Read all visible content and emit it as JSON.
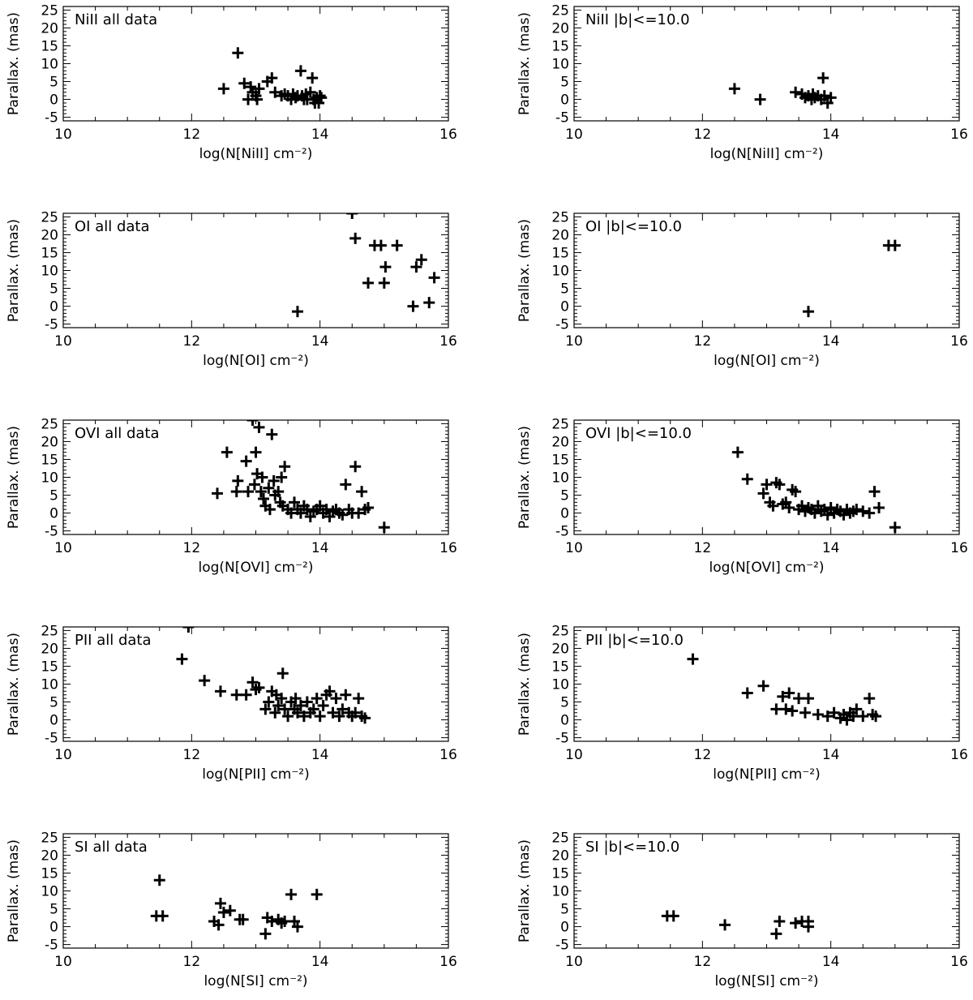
{
  "figure": {
    "background": "#ffffff",
    "foreground": "#000000"
  },
  "chart_data": [
    {
      "type": "scatter",
      "marker": "plus",
      "label": "NiII all data",
      "xlabel": "log(N[NiII] cm⁻²)",
      "ylabel": "Parallax. (mas)",
      "xlim": [
        10,
        16
      ],
      "ylim": [
        -6,
        26
      ],
      "xticks": [
        "10",
        "12",
        "14",
        "16"
      ],
      "yticks": [
        "-5",
        "0",
        "5",
        "10",
        "15",
        "20",
        "25"
      ],
      "x": [
        12.5,
        12.72,
        12.82,
        12.88,
        12.92,
        12.95,
        13.0,
        13.02,
        13.05,
        13.18,
        13.25,
        13.3,
        13.4,
        13.45,
        13.5,
        13.55,
        13.58,
        13.62,
        13.65,
        13.7,
        13.72,
        13.75,
        13.78,
        13.8,
        13.85,
        13.88,
        13.9,
        13.92,
        13.95,
        13.98,
        14.0,
        14.02
      ],
      "y": [
        3,
        13,
        4.5,
        0,
        3.5,
        2,
        1,
        0,
        3,
        5,
        6,
        2,
        1,
        1.5,
        1,
        0,
        1.5,
        0.5,
        1,
        8,
        1,
        0,
        1.5,
        0,
        2,
        6,
        0,
        -1,
        0.5,
        -1,
        1,
        0.5
      ]
    },
    {
      "type": "scatter",
      "marker": "plus",
      "label": "NiII |b|<=10.0",
      "xlabel": "log(N[NiII] cm⁻²)",
      "ylabel": "Parallax. (mas)",
      "xlim": [
        10,
        16
      ],
      "ylim": [
        -6,
        26
      ],
      "xticks": [
        "10",
        "12",
        "14",
        "16"
      ],
      "yticks": [
        "-5",
        "0",
        "5",
        "10",
        "15",
        "20",
        "25"
      ],
      "x": [
        12.5,
        12.9,
        13.45,
        13.55,
        13.6,
        13.65,
        13.7,
        13.72,
        13.75,
        13.8,
        13.85,
        13.88,
        13.9,
        13.95,
        14.0
      ],
      "y": [
        3,
        0,
        2,
        1.5,
        0.5,
        1,
        0,
        1.5,
        0.5,
        1,
        0,
        6,
        1,
        -1,
        0.5
      ]
    },
    {
      "type": "scatter",
      "marker": "plus",
      "label": "OI all data",
      "xlabel": "log(N[OI] cm⁻²)",
      "ylabel": "Parallax. (mas)",
      "xlim": [
        10,
        16
      ],
      "ylim": [
        -6,
        26
      ],
      "xticks": [
        "10",
        "12",
        "14",
        "16"
      ],
      "yticks": [
        "-5",
        "0",
        "5",
        "10",
        "15",
        "20",
        "25"
      ],
      "x": [
        13.65,
        14.5,
        14.55,
        14.75,
        14.85,
        14.95,
        15.0,
        15.02,
        15.2,
        15.45,
        15.5,
        15.58,
        15.7,
        15.78
      ],
      "y": [
        -1.5,
        26,
        19,
        6.5,
        17,
        17,
        6.5,
        11,
        17,
        0,
        11,
        13,
        1,
        8
      ]
    },
    {
      "type": "scatter",
      "marker": "plus",
      "label": "OI |b|<=10.0",
      "xlabel": "log(N[OI] cm⁻²)",
      "ylabel": "Parallax. (mas)",
      "xlim": [
        10,
        16
      ],
      "ylim": [
        -6,
        26
      ],
      "xticks": [
        "10",
        "12",
        "14",
        "16"
      ],
      "yticks": [
        "-5",
        "0",
        "5",
        "10",
        "15",
        "20",
        "25"
      ],
      "x": [
        13.65,
        14.9,
        15.0
      ],
      "y": [
        -1.5,
        17,
        17
      ]
    },
    {
      "type": "scatter",
      "marker": "plus",
      "label": "OVI all data",
      "xlabel": "log(N[OVI] cm⁻²)",
      "ylabel": "Parallax. (mas)",
      "xlim": [
        10,
        16
      ],
      "ylim": [
        -6,
        26
      ],
      "xticks": [
        "10",
        "12",
        "14",
        "16"
      ],
      "yticks": [
        "-5",
        "0",
        "5",
        "10",
        "15",
        "20",
        "25"
      ],
      "x": [
        12.4,
        12.55,
        12.7,
        12.72,
        12.85,
        12.88,
        12.95,
        12.98,
        13.0,
        13.02,
        13.05,
        13.08,
        13.1,
        13.12,
        13.15,
        13.2,
        13.22,
        13.25,
        13.28,
        13.3,
        13.35,
        13.38,
        13.4,
        13.42,
        13.45,
        13.5,
        13.55,
        13.6,
        13.65,
        13.7,
        13.75,
        13.8,
        13.85,
        13.9,
        13.95,
        14.0,
        14.05,
        14.1,
        14.15,
        14.2,
        14.25,
        14.3,
        14.35,
        14.4,
        14.45,
        14.5,
        14.55,
        14.6,
        14.65,
        14.7,
        14.75,
        15.0
      ],
      "y": [
        5.5,
        17,
        6,
        9,
        14.5,
        6,
        26,
        8,
        17,
        11,
        24,
        6,
        10,
        4,
        2,
        7,
        1,
        22,
        9,
        5,
        6,
        3,
        10,
        2,
        13,
        1,
        0,
        3,
        1,
        0,
        2,
        1,
        -1,
        0.5,
        1,
        2,
        0,
        1,
        -1,
        0.5,
        1,
        0,
        -0.5,
        8,
        1,
        0,
        13,
        0,
        6,
        1,
        1.5,
        -4
      ]
    },
    {
      "type": "scatter",
      "marker": "plus",
      "label": "OVI |b|<=10.0",
      "xlabel": "log(N[OVI] cm⁻²)",
      "ylabel": "Parallax. (mas)",
      "xlim": [
        10,
        16
      ],
      "ylim": [
        -6,
        26
      ],
      "xticks": [
        "10",
        "12",
        "14",
        "16"
      ],
      "yticks": [
        "-5",
        "0",
        "5",
        "10",
        "15",
        "20",
        "25"
      ],
      "x": [
        12.55,
        12.7,
        12.95,
        13.0,
        13.05,
        13.1,
        13.15,
        13.2,
        13.25,
        13.3,
        13.35,
        13.4,
        13.45,
        13.5,
        13.55,
        13.6,
        13.65,
        13.7,
        13.75,
        13.8,
        13.85,
        13.9,
        13.95,
        14.0,
        14.05,
        14.1,
        14.15,
        14.2,
        14.25,
        14.3,
        14.35,
        14.4,
        14.5,
        14.6,
        14.68,
        14.75,
        15.0
      ],
      "y": [
        17,
        9.5,
        5.5,
        8,
        3,
        2,
        8.5,
        8,
        2.5,
        3,
        1.5,
        6.5,
        6,
        1,
        2,
        0.5,
        1.5,
        1,
        0,
        2,
        0.5,
        1,
        -0.5,
        1.5,
        0,
        1,
        0.5,
        -0.5,
        1,
        0,
        0.5,
        1,
        0.5,
        0,
        6,
        1.5,
        -4
      ]
    },
    {
      "type": "scatter",
      "marker": "plus",
      "label": "PII all data",
      "xlabel": "log(N[PII] cm⁻²)",
      "ylabel": "Parallax. (mas)",
      "xlim": [
        10,
        16
      ],
      "ylim": [
        -6,
        26
      ],
      "xticks": [
        "10",
        "12",
        "14",
        "16"
      ],
      "yticks": [
        "-5",
        "0",
        "5",
        "10",
        "15",
        "20",
        "25"
      ],
      "x": [
        11.85,
        11.95,
        12.2,
        12.45,
        12.7,
        12.85,
        12.95,
        13.0,
        13.05,
        13.15,
        13.2,
        13.25,
        13.3,
        13.32,
        13.35,
        13.4,
        13.42,
        13.45,
        13.5,
        13.55,
        13.6,
        13.62,
        13.65,
        13.7,
        13.75,
        13.8,
        13.85,
        13.9,
        13.95,
        14.0,
        14.05,
        14.1,
        14.15,
        14.2,
        14.25,
        14.3,
        14.35,
        14.4,
        14.45,
        14.5,
        14.55,
        14.6,
        14.65,
        14.7
      ],
      "y": [
        17,
        26,
        11,
        8,
        7,
        7,
        10.5,
        8.5,
        9,
        3,
        5,
        8,
        2,
        7,
        4,
        6,
        13,
        3,
        1,
        5,
        3,
        6,
        2,
        4,
        1,
        5,
        2,
        3,
        6,
        1,
        4,
        7,
        8,
        2,
        6,
        1,
        3,
        7,
        2,
        1,
        2,
        6,
        1,
        0.5
      ]
    },
    {
      "type": "scatter",
      "marker": "plus",
      "label": "PII |b|<=10.0",
      "xlabel": "log(N[PII] cm⁻²)",
      "ylabel": "Parallax. (mas)",
      "xlim": [
        10,
        16
      ],
      "ylim": [
        -6,
        26
      ],
      "xticks": [
        "10",
        "12",
        "14",
        "16"
      ],
      "yticks": [
        "-5",
        "0",
        "5",
        "10",
        "15",
        "20",
        "25"
      ],
      "x": [
        11.85,
        12.7,
        12.95,
        13.15,
        13.25,
        13.3,
        13.35,
        13.4,
        13.5,
        13.6,
        13.65,
        13.8,
        13.95,
        14.05,
        14.15,
        14.2,
        14.25,
        14.3,
        14.35,
        14.4,
        14.5,
        14.6,
        14.65,
        14.7
      ],
      "y": [
        17,
        7.5,
        9.5,
        3,
        6.5,
        3,
        7.5,
        2.5,
        6,
        2,
        6,
        1.5,
        1,
        2,
        0.5,
        1.5,
        0,
        2,
        1,
        3,
        1,
        6,
        1.5,
        1
      ]
    },
    {
      "type": "scatter",
      "marker": "plus",
      "label": "SI all data",
      "xlabel": "log(N[SI] cm⁻²)",
      "ylabel": "Parallax. (mas)",
      "xlim": [
        10,
        16
      ],
      "ylim": [
        -6,
        26
      ],
      "xticks": [
        "10",
        "12",
        "14",
        "16"
      ],
      "yticks": [
        "-5",
        "0",
        "5",
        "10",
        "15",
        "20",
        "25"
      ],
      "x": [
        11.45,
        11.5,
        11.55,
        12.35,
        12.42,
        12.45,
        12.5,
        12.6,
        12.75,
        12.8,
        13.15,
        13.18,
        13.25,
        13.35,
        13.4,
        13.45,
        13.55,
        13.6,
        13.65,
        13.95
      ],
      "y": [
        3,
        13,
        3,
        1.5,
        0.5,
        6.5,
        4,
        4.5,
        2,
        2,
        -2,
        2.5,
        1.5,
        2,
        1,
        1.5,
        9,
        1.5,
        0,
        9
      ]
    },
    {
      "type": "scatter",
      "marker": "plus",
      "label": "SI |b|<=10.0",
      "xlabel": "log(N[SI] cm⁻²)",
      "ylabel": "Parallax. (mas)",
      "xlim": [
        10,
        16
      ],
      "ylim": [
        -6,
        26
      ],
      "xticks": [
        "10",
        "12",
        "14",
        "16"
      ],
      "yticks": [
        "-5",
        "0",
        "5",
        "10",
        "15",
        "20",
        "25"
      ],
      "x": [
        11.45,
        11.55,
        12.35,
        13.15,
        13.2,
        13.45,
        13.55,
        13.65,
        13.65
      ],
      "y": [
        3,
        3,
        0.5,
        -2,
        1.5,
        1,
        1.5,
        0,
        1.5
      ]
    }
  ]
}
